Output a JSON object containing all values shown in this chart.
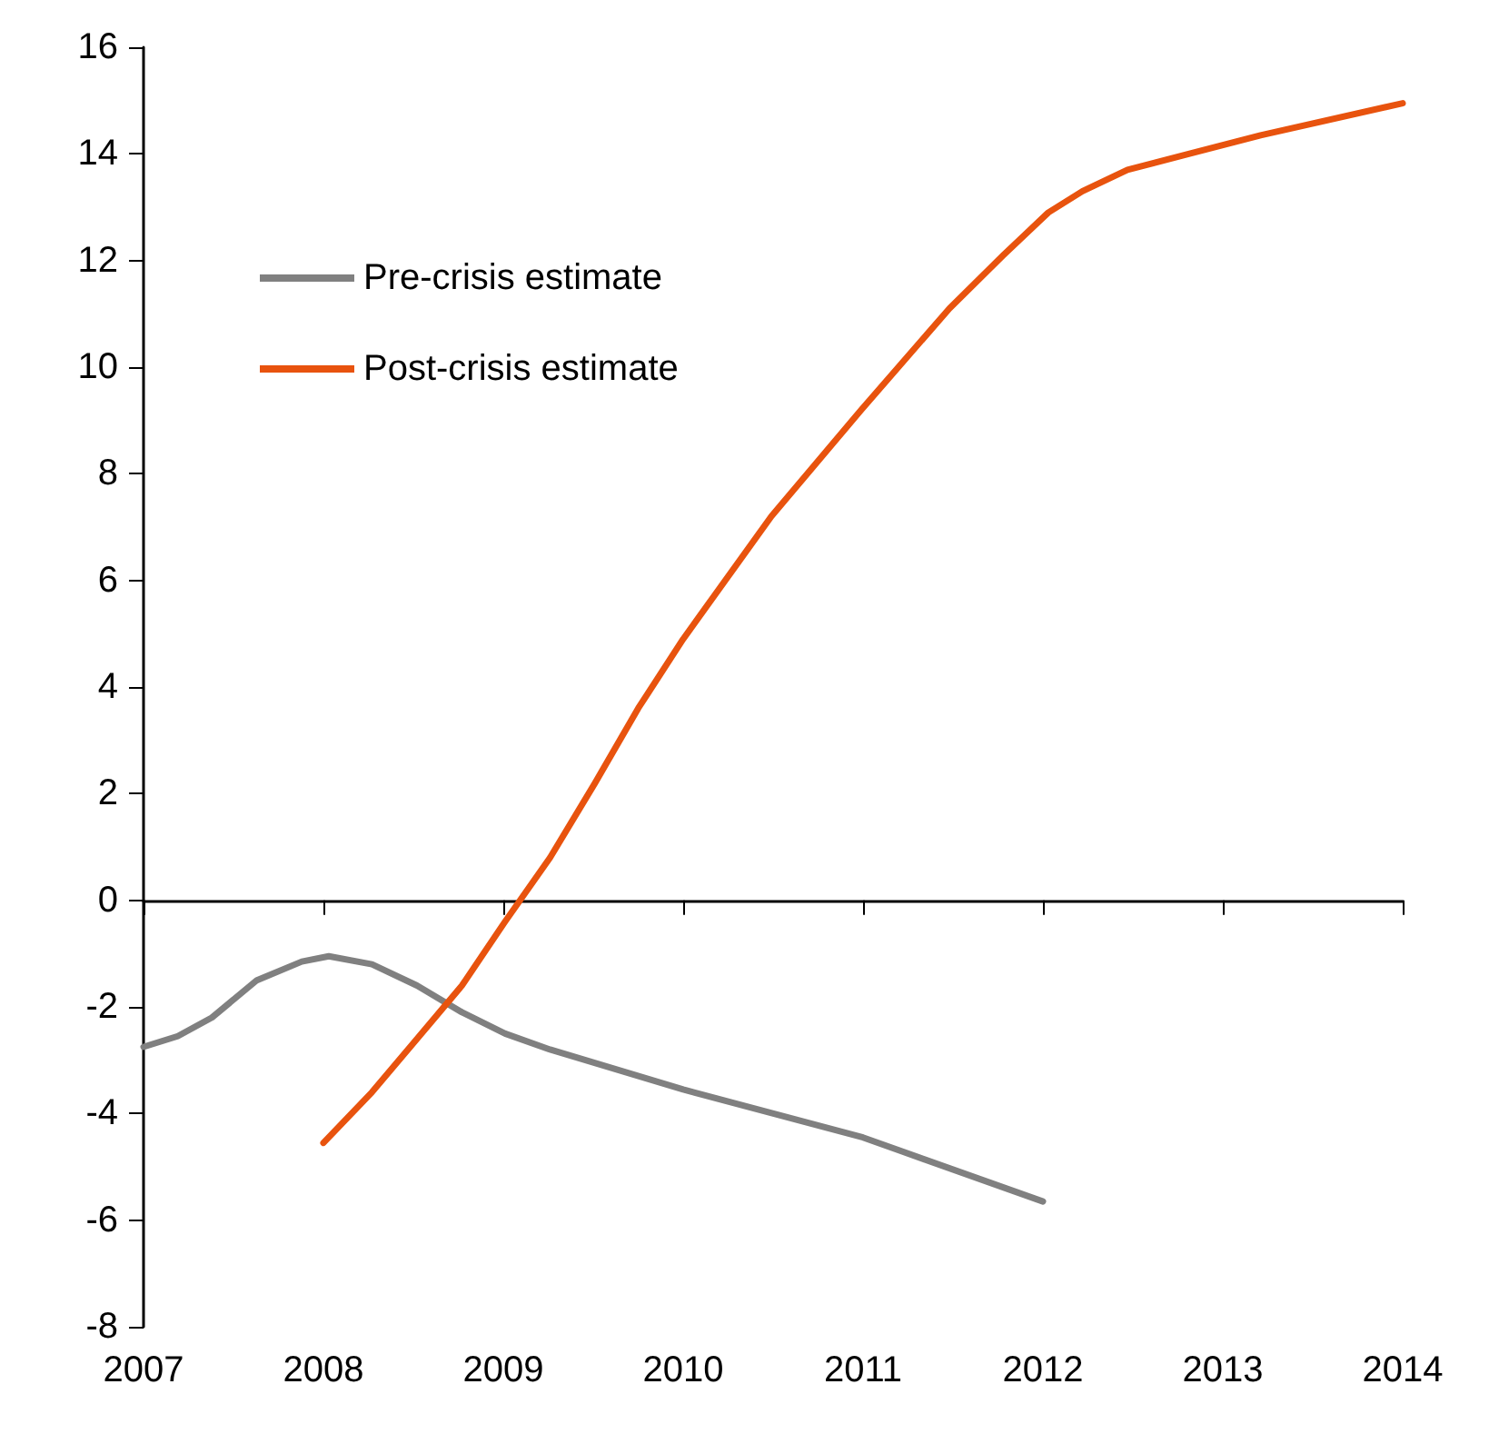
{
  "chart_data": {
    "type": "line",
    "xlim": [
      2007,
      2014
    ],
    "xticks": [
      2007,
      2008,
      2009,
      2010,
      2011,
      2012,
      2013,
      2014
    ],
    "ylim": [
      -8,
      16
    ],
    "yticks": [
      -8,
      -6,
      -4,
      -2,
      0,
      2,
      4,
      6,
      8,
      10,
      12,
      14,
      16
    ],
    "legend": "top left",
    "marker": "none",
    "line_style": "solid",
    "series": [
      {
        "name": "Pre-crisis estimate",
        "color": "#808080",
        "x": [
          2007,
          2007.19,
          2007.38,
          2007.63,
          2007.88,
          2008.03,
          2008.27,
          2008.52,
          2008.77,
          2009.01,
          2009.26,
          2010,
          2011,
          2012
        ],
        "values": [
          -2.75,
          -2.55,
          -2.2,
          -1.5,
          -1.15,
          -1.05,
          -1.2,
          -1.6,
          -2.1,
          -2.5,
          -2.8,
          -3.55,
          -4.45,
          -5.65
        ]
      },
      {
        "name": "Post-crisis estimate",
        "color": "#e8530e",
        "x": [
          2008,
          2008.27,
          2008.52,
          2008.77,
          2009.01,
          2009.26,
          2009.51,
          2009.75,
          2010,
          2010.49,
          2010.99,
          2011.48,
          2011.78,
          2012.03,
          2012.22,
          2012.47,
          2012.81,
          2013.21,
          2014
        ],
        "values": [
          -4.55,
          -3.6,
          -2.6,
          -1.6,
          -0.4,
          0.8,
          2.2,
          3.6,
          4.9,
          7.2,
          9.2,
          11.1,
          12.1,
          12.9,
          13.3,
          13.7,
          14.0,
          14.35,
          14.95
        ]
      }
    ]
  }
}
